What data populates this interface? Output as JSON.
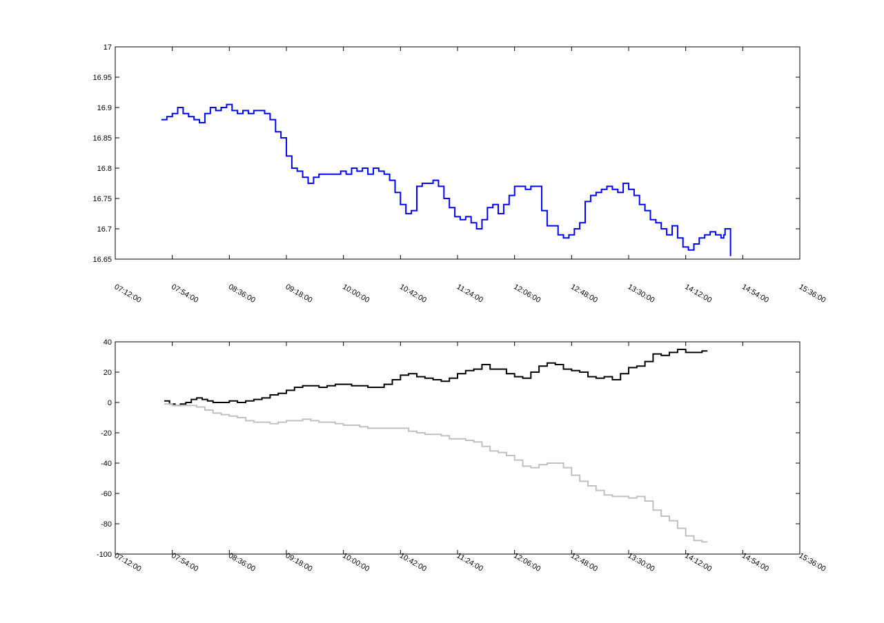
{
  "chart_data": [
    {
      "type": "line",
      "title": "",
      "xlabel": "",
      "ylabel": "",
      "xlim": [
        "07:12:00",
        "15:36:00"
      ],
      "ylim": [
        16.65,
        17
      ],
      "xticks": [
        "07:12:00",
        "07:54:00",
        "08:36:00",
        "09:18:00",
        "10:00:00",
        "10:42:00",
        "11:24:00",
        "12:06:00",
        "12:48:00",
        "13:30:00",
        "14:12:00",
        "14:54:00",
        "15:36:00"
      ],
      "yticks": [
        "17",
        "16.95",
        "16.9",
        "16.85",
        "16.8",
        "16.75",
        "16.7",
        "16.65"
      ],
      "grid": false,
      "series": [
        {
          "color": "#0000ff",
          "points": [
            [
              "07:46:00",
              16.88
            ],
            [
              "07:50:00",
              16.885
            ],
            [
              "07:54:00",
              16.89
            ],
            [
              "07:58:00",
              16.9
            ],
            [
              "08:02:00",
              16.89
            ],
            [
              "08:06:00",
              16.885
            ],
            [
              "08:10:00",
              16.88
            ],
            [
              "08:14:00",
              16.875
            ],
            [
              "08:18:00",
              16.89
            ],
            [
              "08:22:00",
              16.9
            ],
            [
              "08:26:00",
              16.895
            ],
            [
              "08:30:00",
              16.9
            ],
            [
              "08:34:00",
              16.905
            ],
            [
              "08:38:00",
              16.895
            ],
            [
              "08:42:00",
              16.89
            ],
            [
              "08:46:00",
              16.895
            ],
            [
              "08:50:00",
              16.89
            ],
            [
              "08:54:00",
              16.895
            ],
            [
              "08:58:00",
              16.895
            ],
            [
              "09:02:00",
              16.89
            ],
            [
              "09:06:00",
              16.88
            ],
            [
              "09:10:00",
              16.86
            ],
            [
              "09:14:00",
              16.85
            ],
            [
              "09:18:00",
              16.82
            ],
            [
              "09:22:00",
              16.8
            ],
            [
              "09:26:00",
              16.795
            ],
            [
              "09:30:00",
              16.785
            ],
            [
              "09:34:00",
              16.775
            ],
            [
              "09:38:00",
              16.785
            ],
            [
              "09:42:00",
              16.79
            ],
            [
              "09:46:00",
              16.79
            ],
            [
              "09:50:00",
              16.79
            ],
            [
              "09:54:00",
              16.79
            ],
            [
              "09:58:00",
              16.795
            ],
            [
              "10:02:00",
              16.79
            ],
            [
              "10:06:00",
              16.8
            ],
            [
              "10:10:00",
              16.795
            ],
            [
              "10:14:00",
              16.8
            ],
            [
              "10:18:00",
              16.79
            ],
            [
              "10:22:00",
              16.8
            ],
            [
              "10:26:00",
              16.795
            ],
            [
              "10:30:00",
              16.79
            ],
            [
              "10:34:00",
              16.78
            ],
            [
              "10:38:00",
              16.76
            ],
            [
              "10:42:00",
              16.74
            ],
            [
              "10:46:00",
              16.725
            ],
            [
              "10:50:00",
              16.73
            ],
            [
              "10:54:00",
              16.77
            ],
            [
              "10:58:00",
              16.775
            ],
            [
              "11:02:00",
              16.775
            ],
            [
              "11:06:00",
              16.78
            ],
            [
              "11:10:00",
              16.77
            ],
            [
              "11:14:00",
              16.75
            ],
            [
              "11:18:00",
              16.735
            ],
            [
              "11:22:00",
              16.72
            ],
            [
              "11:26:00",
              16.715
            ],
            [
              "11:30:00",
              16.72
            ],
            [
              "11:34:00",
              16.71
            ],
            [
              "11:38:00",
              16.7
            ],
            [
              "11:42:00",
              16.715
            ],
            [
              "11:46:00",
              16.735
            ],
            [
              "11:50:00",
              16.74
            ],
            [
              "11:54:00",
              16.725
            ],
            [
              "11:58:00",
              16.74
            ],
            [
              "12:02:00",
              16.755
            ],
            [
              "12:06:00",
              16.77
            ],
            [
              "12:10:00",
              16.77
            ],
            [
              "12:14:00",
              16.765
            ],
            [
              "12:18:00",
              16.77
            ],
            [
              "12:22:00",
              16.77
            ],
            [
              "12:26:00",
              16.73
            ],
            [
              "12:30:00",
              16.705
            ],
            [
              "12:34:00",
              16.705
            ],
            [
              "12:38:00",
              16.69
            ],
            [
              "12:42:00",
              16.685
            ],
            [
              "12:46:00",
              16.69
            ],
            [
              "12:50:00",
              16.7
            ],
            [
              "12:54:00",
              16.71
            ],
            [
              "12:58:00",
              16.745
            ],
            [
              "13:02:00",
              16.755
            ],
            [
              "13:06:00",
              16.76
            ],
            [
              "13:10:00",
              16.765
            ],
            [
              "13:14:00",
              16.77
            ],
            [
              "13:18:00",
              16.765
            ],
            [
              "13:22:00",
              16.76
            ],
            [
              "13:26:00",
              16.775
            ],
            [
              "13:30:00",
              16.765
            ],
            [
              "13:34:00",
              16.755
            ],
            [
              "13:38:00",
              16.74
            ],
            [
              "13:42:00",
              16.73
            ],
            [
              "13:46:00",
              16.715
            ],
            [
              "13:50:00",
              16.71
            ],
            [
              "13:54:00",
              16.7
            ],
            [
              "13:58:00",
              16.69
            ],
            [
              "14:02:00",
              16.705
            ],
            [
              "14:06:00",
              16.685
            ],
            [
              "14:10:00",
              16.67
            ],
            [
              "14:14:00",
              16.665
            ],
            [
              "14:18:00",
              16.675
            ],
            [
              "14:22:00",
              16.685
            ],
            [
              "14:26:00",
              16.69
            ],
            [
              "14:30:00",
              16.695
            ],
            [
              "14:34:00",
              16.69
            ],
            [
              "14:38:00",
              16.685
            ],
            [
              "14:40:00",
              16.69
            ],
            [
              "14:41:00",
              16.7
            ],
            [
              "14:44:00",
              16.7
            ],
            [
              "14:45:00",
              16.655
            ]
          ]
        }
      ]
    },
    {
      "type": "line",
      "title": "",
      "xlabel": "",
      "ylabel": "",
      "xlim": [
        "07:12:00",
        "15:36:00"
      ],
      "ylim": [
        -100,
        40
      ],
      "xticks": [
        "07:12:00",
        "07:54:00",
        "08:36:00",
        "09:18:00",
        "10:00:00",
        "10:42:00",
        "11:24:00",
        "12:06:00",
        "12:48:00",
        "13:30:00",
        "14:12:00",
        "14:54:00",
        "15:36:00"
      ],
      "yticks": [
        "40",
        "20",
        "0",
        "-20",
        "-40",
        "-60",
        "-80",
        "-100"
      ],
      "grid": false,
      "series": [
        {
          "color": "#000000",
          "points": [
            [
              "07:48:00",
              1
            ],
            [
              "07:52:00",
              -1
            ],
            [
              "07:56:00",
              -2
            ],
            [
              "08:00:00",
              -1
            ],
            [
              "08:04:00",
              0
            ],
            [
              "08:08:00",
              2
            ],
            [
              "08:12:00",
              3
            ],
            [
              "08:16:00",
              2
            ],
            [
              "08:20:00",
              1
            ],
            [
              "08:24:00",
              0
            ],
            [
              "08:30:00",
              0
            ],
            [
              "08:36:00",
              1
            ],
            [
              "08:42:00",
              0
            ],
            [
              "08:48:00",
              1
            ],
            [
              "08:54:00",
              2
            ],
            [
              "09:00:00",
              3
            ],
            [
              "09:06:00",
              5
            ],
            [
              "09:12:00",
              6
            ],
            [
              "09:18:00",
              8
            ],
            [
              "09:24:00",
              10
            ],
            [
              "09:30:00",
              11
            ],
            [
              "09:36:00",
              11
            ],
            [
              "09:42:00",
              10
            ],
            [
              "09:48:00",
              11
            ],
            [
              "09:54:00",
              12
            ],
            [
              "10:00:00",
              12
            ],
            [
              "10:06:00",
              11
            ],
            [
              "10:12:00",
              11
            ],
            [
              "10:18:00",
              10
            ],
            [
              "10:24:00",
              10
            ],
            [
              "10:30:00",
              12
            ],
            [
              "10:36:00",
              15
            ],
            [
              "10:42:00",
              18
            ],
            [
              "10:48:00",
              19
            ],
            [
              "10:54:00",
              17
            ],
            [
              "11:00:00",
              16
            ],
            [
              "11:06:00",
              15
            ],
            [
              "11:12:00",
              14
            ],
            [
              "11:18:00",
              16
            ],
            [
              "11:24:00",
              19
            ],
            [
              "11:30:00",
              21
            ],
            [
              "11:36:00",
              22
            ],
            [
              "11:42:00",
              25
            ],
            [
              "11:48:00",
              22
            ],
            [
              "11:54:00",
              22
            ],
            [
              "12:00:00",
              19
            ],
            [
              "12:06:00",
              17
            ],
            [
              "12:12:00",
              16
            ],
            [
              "12:18:00",
              20
            ],
            [
              "12:24:00",
              24
            ],
            [
              "12:30:00",
              26
            ],
            [
              "12:36:00",
              25
            ],
            [
              "12:42:00",
              22
            ],
            [
              "12:48:00",
              21
            ],
            [
              "12:54:00",
              20
            ],
            [
              "13:00:00",
              17
            ],
            [
              "13:06:00",
              16
            ],
            [
              "13:12:00",
              17
            ],
            [
              "13:18:00",
              15
            ],
            [
              "13:24:00",
              19
            ],
            [
              "13:30:00",
              23
            ],
            [
              "13:36:00",
              24
            ],
            [
              "13:42:00",
              27
            ],
            [
              "13:48:00",
              32
            ],
            [
              "13:54:00",
              31
            ],
            [
              "14:00:00",
              33
            ],
            [
              "14:06:00",
              35
            ],
            [
              "14:12:00",
              33
            ],
            [
              "14:18:00",
              33
            ],
            [
              "14:24:00",
              34
            ],
            [
              "14:28:00",
              34
            ]
          ]
        },
        {
          "color": "#c0c0c0",
          "points": [
            [
              "07:48:00",
              -1
            ],
            [
              "07:54:00",
              -2
            ],
            [
              "08:00:00",
              -2
            ],
            [
              "08:06:00",
              -2
            ],
            [
              "08:12:00",
              -3
            ],
            [
              "08:18:00",
              -5
            ],
            [
              "08:24:00",
              -7
            ],
            [
              "08:30:00",
              -8
            ],
            [
              "08:36:00",
              -9
            ],
            [
              "08:42:00",
              -10
            ],
            [
              "08:48:00",
              -12
            ],
            [
              "08:54:00",
              -13
            ],
            [
              "09:00:00",
              -13
            ],
            [
              "09:06:00",
              -14
            ],
            [
              "09:12:00",
              -13
            ],
            [
              "09:18:00",
              -12
            ],
            [
              "09:24:00",
              -12
            ],
            [
              "09:30:00",
              -11
            ],
            [
              "09:36:00",
              -12
            ],
            [
              "09:42:00",
              -13
            ],
            [
              "09:48:00",
              -13
            ],
            [
              "09:54:00",
              -14
            ],
            [
              "10:00:00",
              -15
            ],
            [
              "10:06:00",
              -15
            ],
            [
              "10:12:00",
              -16
            ],
            [
              "10:18:00",
              -17
            ],
            [
              "10:24:00",
              -17
            ],
            [
              "10:30:00",
              -17
            ],
            [
              "10:36:00",
              -17
            ],
            [
              "10:42:00",
              -17
            ],
            [
              "10:48:00",
              -19
            ],
            [
              "10:54:00",
              -20
            ],
            [
              "11:00:00",
              -21
            ],
            [
              "11:06:00",
              -21
            ],
            [
              "11:12:00",
              -22
            ],
            [
              "11:18:00",
              -24
            ],
            [
              "11:24:00",
              -24
            ],
            [
              "11:30:00",
              -25
            ],
            [
              "11:36:00",
              -26
            ],
            [
              "11:42:00",
              -29
            ],
            [
              "11:48:00",
              -32
            ],
            [
              "11:54:00",
              -33
            ],
            [
              "12:00:00",
              -35
            ],
            [
              "12:06:00",
              -38
            ],
            [
              "12:12:00",
              -42
            ],
            [
              "12:18:00",
              -43
            ],
            [
              "12:24:00",
              -41
            ],
            [
              "12:30:00",
              -40
            ],
            [
              "12:36:00",
              -40
            ],
            [
              "12:42:00",
              -43
            ],
            [
              "12:48:00",
              -48
            ],
            [
              "12:54:00",
              -52
            ],
            [
              "13:00:00",
              -55
            ],
            [
              "13:06:00",
              -58
            ],
            [
              "13:12:00",
              -61
            ],
            [
              "13:18:00",
              -62
            ],
            [
              "13:24:00",
              -62
            ],
            [
              "13:30:00",
              -63
            ],
            [
              "13:36:00",
              -62
            ],
            [
              "13:42:00",
              -65
            ],
            [
              "13:48:00",
              -71
            ],
            [
              "13:54:00",
              -75
            ],
            [
              "14:00:00",
              -78
            ],
            [
              "14:06:00",
              -83
            ],
            [
              "14:12:00",
              -88
            ],
            [
              "14:18:00",
              -91
            ],
            [
              "14:24:00",
              -92
            ],
            [
              "14:28:00",
              -92
            ]
          ]
        }
      ]
    }
  ]
}
